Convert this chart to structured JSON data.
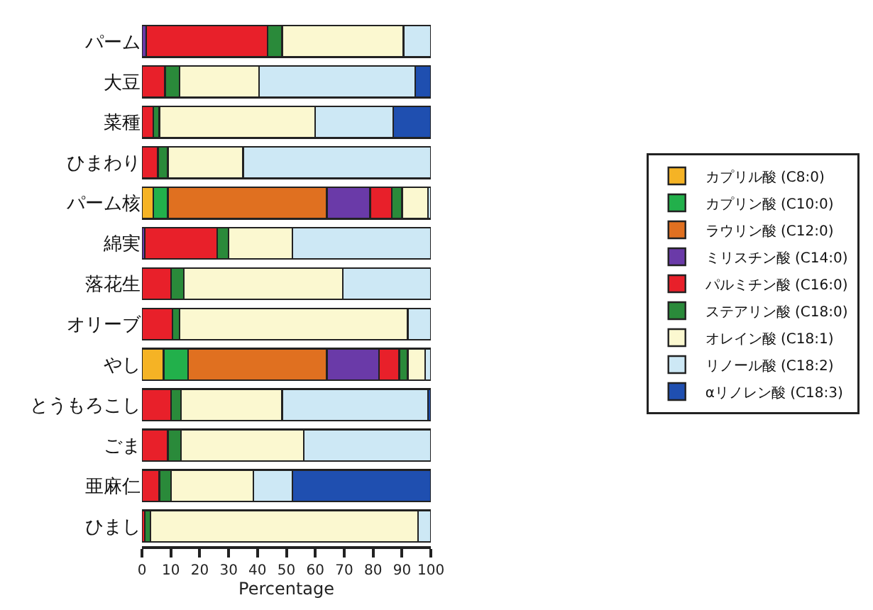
{
  "chart_data": {
    "type": "bar",
    "orientation": "horizontal",
    "stacked": true,
    "xlabel": "Percentage",
    "categories": [
      "パーム",
      "大豆",
      "菜種",
      "ひまわり",
      "パーム核",
      "綿実",
      "落花生",
      "オリーブ",
      "やし",
      "とうもろこし",
      "ごま",
      "亜麻仁",
      "ひまし"
    ],
    "series": [
      {
        "name": "カプリル酸 (C8:0)",
        "color": "#f5b325",
        "values": [
          null,
          null,
          null,
          null,
          4,
          null,
          null,
          null,
          7.5,
          null,
          null,
          null,
          null
        ]
      },
      {
        "name": "カプリン酸 (C10:0)",
        "color": "#22b04b",
        "values": [
          null,
          null,
          null,
          null,
          5,
          null,
          null,
          null,
          8.5,
          null,
          null,
          null,
          null
        ]
      },
      {
        "name": "ラウリン酸 (C12:0)",
        "color": "#e07020",
        "values": [
          null,
          null,
          null,
          null,
          55,
          null,
          null,
          null,
          48,
          null,
          null,
          null,
          null
        ]
      },
      {
        "name": "ミリスチン酸 (C14:0)",
        "color": "#6a3aa8",
        "values": [
          1.5,
          null,
          null,
          null,
          15,
          1,
          null,
          null,
          18,
          null,
          null,
          null,
          null
        ]
      },
      {
        "name": "パルミチン酸 (C16:0)",
        "color": "#e8202a",
        "values": [
          42,
          8,
          4,
          5.5,
          7.5,
          25,
          10,
          10.5,
          7,
          10,
          9,
          6,
          1
        ]
      },
      {
        "name": "ステアリン酸 (C18:0)",
        "color": "#2a8a3a",
        "values": [
          5,
          5,
          2,
          3.5,
          3.5,
          4,
          4.5,
          2.5,
          3,
          3.5,
          4.5,
          4,
          2
        ]
      },
      {
        "name": "オレイン酸 (C18:1)",
        "color": "#fbf8d0",
        "values": [
          42,
          27.5,
          54,
          26,
          9,
          22,
          55,
          79,
          6,
          35,
          42.5,
          28.5,
          92.5
        ]
      },
      {
        "name": "リノール酸 (C18:2)",
        "color": "#cde8f5",
        "values": [
          9.5,
          54,
          27,
          65,
          1,
          48,
          30.5,
          8,
          2,
          50.5,
          44,
          13.5,
          4.5
        ]
      },
      {
        "name": "αリノレン酸 (C18:3)",
        "color": "#1f4fb0",
        "values": [
          null,
          5.5,
          13,
          null,
          null,
          null,
          null,
          null,
          null,
          1,
          null,
          48,
          null
        ]
      }
    ],
    "xlim": [
      0,
      100
    ],
    "xticks": [
      0,
      10,
      20,
      30,
      40,
      50,
      60,
      70,
      80,
      90,
      100
    ],
    "legend": "right"
  }
}
